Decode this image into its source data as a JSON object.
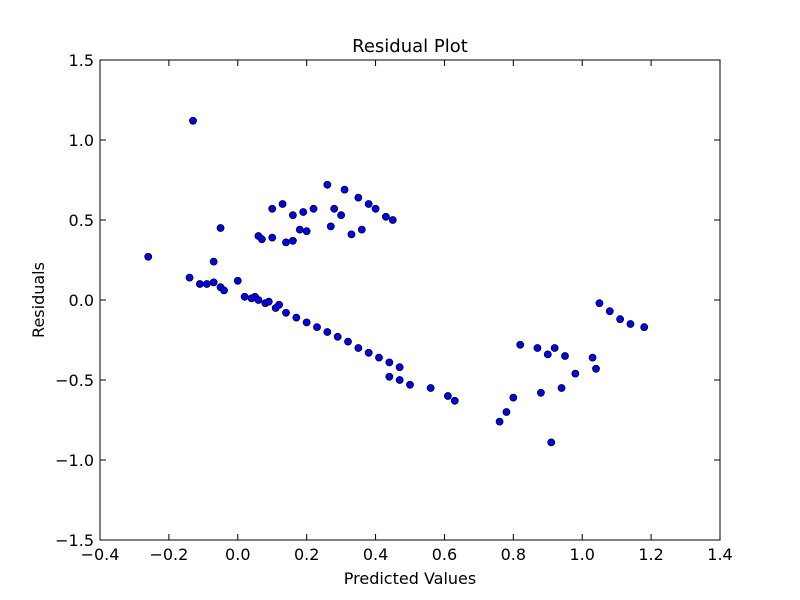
{
  "chart_data": {
    "type": "scatter",
    "title": "Residual Plot",
    "xlabel": "Predicted Values",
    "ylabel": "Residuals",
    "xlim": [
      -0.4,
      1.4
    ],
    "ylim": [
      -1.5,
      1.5
    ],
    "x_ticks": [
      -0.4,
      -0.2,
      0.0,
      0.2,
      0.4,
      0.6,
      0.8,
      1.0,
      1.2,
      1.4
    ],
    "y_ticks": [
      -1.5,
      -1.0,
      -0.5,
      0.0,
      0.5,
      1.0,
      1.5
    ],
    "x_tick_labels": [
      "−0.4",
      "−0.2",
      "0.0",
      "0.2",
      "0.4",
      "0.6",
      "0.8",
      "1.0",
      "1.2",
      "1.4"
    ],
    "y_tick_labels": [
      "−1.5",
      "−1.0",
      "−0.5",
      "0.0",
      "0.5",
      "1.0",
      "1.5"
    ],
    "grid": false,
    "marker_color": "#0000ff",
    "marker_edge_color": "#000000",
    "points": [
      [
        -0.26,
        0.27
      ],
      [
        -0.13,
        1.12
      ],
      [
        -0.14,
        0.14
      ],
      [
        -0.11,
        0.1
      ],
      [
        -0.09,
        0.1
      ],
      [
        -0.07,
        0.11
      ],
      [
        -0.07,
        0.24
      ],
      [
        -0.05,
        0.45
      ],
      [
        -0.05,
        0.08
      ],
      [
        -0.04,
        0.06
      ],
      [
        0.0,
        0.12
      ],
      [
        0.1,
        0.57
      ],
      [
        0.13,
        0.6
      ],
      [
        0.16,
        0.53
      ],
      [
        0.19,
        0.55
      ],
      [
        0.22,
        0.57
      ],
      [
        0.26,
        0.72
      ],
      [
        0.28,
        0.57
      ],
      [
        0.31,
        0.69
      ],
      [
        0.3,
        0.53
      ],
      [
        0.35,
        0.64
      ],
      [
        0.38,
        0.6
      ],
      [
        0.4,
        0.57
      ],
      [
        0.43,
        0.52
      ],
      [
        0.45,
        0.5
      ],
      [
        0.18,
        0.44
      ],
      [
        0.2,
        0.43
      ],
      [
        0.27,
        0.46
      ],
      [
        0.33,
        0.41
      ],
      [
        0.36,
        0.44
      ],
      [
        0.06,
        0.4
      ],
      [
        0.07,
        0.38
      ],
      [
        0.1,
        0.39
      ],
      [
        0.14,
        0.36
      ],
      [
        0.16,
        0.37
      ],
      [
        1.05,
        -0.02
      ],
      [
        1.08,
        -0.07
      ],
      [
        1.11,
        -0.12
      ],
      [
        1.14,
        -0.15
      ],
      [
        1.18,
        -0.17
      ],
      [
        1.03,
        -0.36
      ],
      [
        1.04,
        -0.43
      ],
      [
        0.98,
        -0.46
      ],
      [
        0.94,
        -0.55
      ],
      [
        0.91,
        -0.89
      ],
      [
        0.88,
        -0.58
      ],
      [
        0.8,
        -0.61
      ],
      [
        0.78,
        -0.7
      ],
      [
        0.76,
        -0.76
      ],
      [
        0.63,
        -0.63
      ],
      [
        0.61,
        -0.6
      ],
      [
        0.56,
        -0.55
      ],
      [
        0.5,
        -0.53
      ],
      [
        0.47,
        -0.5
      ],
      [
        0.44,
        -0.48
      ],
      [
        0.95,
        -0.35
      ],
      [
        0.92,
        -0.3
      ],
      [
        0.9,
        -0.34
      ],
      [
        0.87,
        -0.3
      ],
      [
        0.82,
        -0.28
      ],
      [
        0.05,
        0.02
      ],
      [
        0.08,
        -0.02
      ],
      [
        0.11,
        -0.05
      ],
      [
        0.14,
        -0.08
      ],
      [
        0.17,
        -0.11
      ],
      [
        0.2,
        -0.14
      ],
      [
        0.23,
        -0.17
      ],
      [
        0.26,
        -0.2
      ],
      [
        0.29,
        -0.23
      ],
      [
        0.32,
        -0.26
      ],
      [
        0.35,
        -0.3
      ],
      [
        0.38,
        -0.33
      ],
      [
        0.41,
        -0.36
      ],
      [
        0.44,
        -0.39
      ],
      [
        0.47,
        -0.42
      ],
      [
        0.02,
        0.02
      ],
      [
        0.04,
        0.01
      ],
      [
        0.06,
        0.0
      ],
      [
        0.09,
        -0.01
      ],
      [
        0.12,
        -0.03
      ]
    ]
  }
}
